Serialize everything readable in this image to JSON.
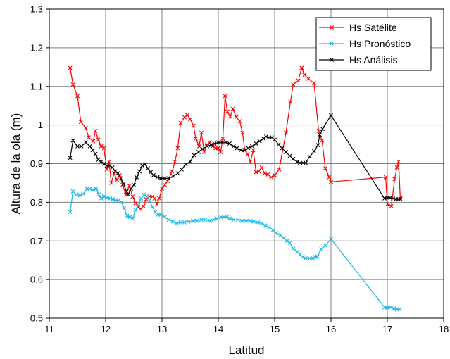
{
  "chart_data": {
    "type": "line",
    "title": "",
    "xlabel": "Latitud",
    "ylabel": "Altura de la ola (m)",
    "xlim": [
      11,
      18
    ],
    "ylim": [
      0.5,
      1.3
    ],
    "xticks": [
      "11",
      "12",
      "13",
      "14",
      "15",
      "16",
      "17",
      "18"
    ],
    "yticks": [
      "0.5",
      "0.6",
      "0.7",
      "0.8",
      "0.9",
      "1",
      "1.1",
      "1.2",
      "1.3"
    ],
    "grid": true,
    "legend_position": "top-right",
    "series": [
      {
        "name": "Hs Satélite",
        "color": "#ff0000",
        "marker": "x",
        "points": [
          [
            11.37,
            1.148
          ],
          [
            11.42,
            1.105
          ],
          [
            11.5,
            1.075
          ],
          [
            11.56,
            1.008
          ],
          [
            11.65,
            0.992
          ],
          [
            11.7,
            0.968
          ],
          [
            11.78,
            0.958
          ],
          [
            11.82,
            0.985
          ],
          [
            11.87,
            0.962
          ],
          [
            11.92,
            0.945
          ],
          [
            11.97,
            0.94
          ],
          [
            12.02,
            0.885
          ],
          [
            12.06,
            0.905
          ],
          [
            12.1,
            0.85
          ],
          [
            12.15,
            0.875
          ],
          [
            12.2,
            0.858
          ],
          [
            12.25,
            0.87
          ],
          [
            12.3,
            0.845
          ],
          [
            12.36,
            0.82
          ],
          [
            12.42,
            0.843
          ],
          [
            12.48,
            0.815
          ],
          [
            12.53,
            0.798
          ],
          [
            12.58,
            0.788
          ],
          [
            12.62,
            0.782
          ],
          [
            12.67,
            0.79
          ],
          [
            12.72,
            0.808
          ],
          [
            12.78,
            0.815
          ],
          [
            12.83,
            0.815
          ],
          [
            12.87,
            0.81
          ],
          [
            12.91,
            0.795
          ],
          [
            12.95,
            0.81
          ],
          [
            13.0,
            0.835
          ],
          [
            13.05,
            0.845
          ],
          [
            13.1,
            0.855
          ],
          [
            13.18,
            0.88
          ],
          [
            13.23,
            0.905
          ],
          [
            13.28,
            0.94
          ],
          [
            13.33,
            1.005
          ],
          [
            13.4,
            1.02
          ],
          [
            13.45,
            1.026
          ],
          [
            13.5,
            1.015
          ],
          [
            13.56,
            0.998
          ],
          [
            13.6,
            0.965
          ],
          [
            13.66,
            0.945
          ],
          [
            13.7,
            0.98
          ],
          [
            13.75,
            0.93
          ],
          [
            13.8,
            0.95
          ],
          [
            13.85,
            0.955
          ],
          [
            13.9,
            0.945
          ],
          [
            13.95,
            0.94
          ],
          [
            14.0,
            0.94
          ],
          [
            14.04,
            0.93
          ],
          [
            14.08,
            0.965
          ],
          [
            14.12,
            1.075
          ],
          [
            14.16,
            1.035
          ],
          [
            14.21,
            1.022
          ],
          [
            14.26,
            1.042
          ],
          [
            14.32,
            1.02
          ],
          [
            14.38,
            1.01
          ],
          [
            14.43,
            0.98
          ],
          [
            14.47,
            0.935
          ],
          [
            14.52,
            0.925
          ],
          [
            14.57,
            0.905
          ],
          [
            14.62,
            0.935
          ],
          [
            14.67,
            0.878
          ],
          [
            14.72,
            0.88
          ],
          [
            14.77,
            0.89
          ],
          [
            14.82,
            0.875
          ],
          [
            14.88,
            0.872
          ],
          [
            14.94,
            0.865
          ],
          [
            15.0,
            0.87
          ],
          [
            15.08,
            0.885
          ],
          [
            15.2,
            0.98
          ],
          [
            15.28,
            1.06
          ],
          [
            15.33,
            1.105
          ],
          [
            15.42,
            1.115
          ],
          [
            15.48,
            1.148
          ],
          [
            15.53,
            1.13
          ],
          [
            15.6,
            1.12
          ],
          [
            15.7,
            1.108
          ],
          [
            15.78,
            0.985
          ],
          [
            15.84,
            0.96
          ],
          [
            15.9,
            0.888
          ],
          [
            15.97,
            0.865
          ],
          [
            16.0,
            0.853
          ],
          [
            16.97,
            0.865
          ],
          [
            17.0,
            0.795
          ],
          [
            17.07,
            0.79
          ],
          [
            17.13,
            0.86
          ],
          [
            17.17,
            0.89
          ],
          [
            17.2,
            0.905
          ],
          [
            17.23,
            0.81
          ]
        ]
      },
      {
        "name": "Hs Pronóstico",
        "color": "#1ab7e8",
        "marker": "x",
        "points": [
          [
            11.37,
            0.775
          ],
          [
            11.42,
            0.828
          ],
          [
            11.48,
            0.82
          ],
          [
            11.55,
            0.818
          ],
          [
            11.6,
            0.822
          ],
          [
            11.67,
            0.835
          ],
          [
            11.72,
            0.835
          ],
          [
            11.78,
            0.832
          ],
          [
            11.83,
            0.835
          ],
          [
            11.88,
            0.82
          ],
          [
            11.92,
            0.81
          ],
          [
            11.97,
            0.815
          ],
          [
            12.02,
            0.812
          ],
          [
            12.08,
            0.81
          ],
          [
            12.13,
            0.808
          ],
          [
            12.18,
            0.805
          ],
          [
            12.23,
            0.805
          ],
          [
            12.28,
            0.8
          ],
          [
            12.33,
            0.785
          ],
          [
            12.38,
            0.765
          ],
          [
            12.43,
            0.762
          ],
          [
            12.48,
            0.758
          ],
          [
            12.53,
            0.78
          ],
          [
            12.58,
            0.792
          ],
          [
            12.63,
            0.81
          ],
          [
            12.68,
            0.82
          ],
          [
            12.73,
            0.815
          ],
          [
            12.78,
            0.805
          ],
          [
            12.83,
            0.788
          ],
          [
            12.88,
            0.775
          ],
          [
            12.93,
            0.768
          ],
          [
            12.98,
            0.768
          ],
          [
            13.05,
            0.762
          ],
          [
            13.12,
            0.755
          ],
          [
            13.2,
            0.75
          ],
          [
            13.26,
            0.745
          ],
          [
            13.33,
            0.748
          ],
          [
            13.4,
            0.748
          ],
          [
            13.47,
            0.75
          ],
          [
            13.55,
            0.752
          ],
          [
            13.62,
            0.752
          ],
          [
            13.7,
            0.755
          ],
          [
            13.77,
            0.755
          ],
          [
            13.85,
            0.752
          ],
          [
            13.92,
            0.755
          ],
          [
            13.98,
            0.758
          ],
          [
            14.05,
            0.762
          ],
          [
            14.1,
            0.762
          ],
          [
            14.15,
            0.762
          ],
          [
            14.2,
            0.758
          ],
          [
            14.27,
            0.755
          ],
          [
            14.35,
            0.755
          ],
          [
            14.42,
            0.752
          ],
          [
            14.5,
            0.752
          ],
          [
            14.57,
            0.752
          ],
          [
            14.63,
            0.75
          ],
          [
            14.7,
            0.748
          ],
          [
            14.77,
            0.745
          ],
          [
            14.83,
            0.74
          ],
          [
            14.9,
            0.735
          ],
          [
            14.97,
            0.728
          ],
          [
            15.03,
            0.72
          ],
          [
            15.1,
            0.715
          ],
          [
            15.16,
            0.708
          ],
          [
            15.22,
            0.7
          ],
          [
            15.27,
            0.695
          ],
          [
            15.33,
            0.68
          ],
          [
            15.4,
            0.672
          ],
          [
            15.45,
            0.665
          ],
          [
            15.5,
            0.658
          ],
          [
            15.55,
            0.655
          ],
          [
            15.62,
            0.655
          ],
          [
            15.68,
            0.655
          ],
          [
            15.72,
            0.658
          ],
          [
            15.76,
            0.66
          ],
          [
            15.82,
            0.678
          ],
          [
            15.9,
            0.688
          ],
          [
            16.0,
            0.705
          ],
          [
            16.95,
            0.528
          ],
          [
            17.0,
            0.527
          ],
          [
            17.06,
            0.528
          ],
          [
            17.12,
            0.525
          ],
          [
            17.17,
            0.523
          ],
          [
            17.22,
            0.523
          ]
        ]
      },
      {
        "name": "Hs Análisis",
        "color": "#000000",
        "marker": "x",
        "points": [
          [
            11.37,
            0.915
          ],
          [
            11.42,
            0.96
          ],
          [
            11.5,
            0.945
          ],
          [
            11.57,
            0.945
          ],
          [
            11.65,
            0.955
          ],
          [
            11.72,
            0.945
          ],
          [
            11.77,
            0.935
          ],
          [
            11.82,
            0.925
          ],
          [
            11.87,
            0.91
          ],
          [
            11.92,
            0.905
          ],
          [
            11.97,
            0.9
          ],
          [
            12.02,
            0.895
          ],
          [
            12.07,
            0.895
          ],
          [
            12.12,
            0.89
          ],
          [
            12.17,
            0.88
          ],
          [
            12.22,
            0.875
          ],
          [
            12.27,
            0.862
          ],
          [
            12.32,
            0.848
          ],
          [
            12.37,
            0.828
          ],
          [
            12.4,
            0.82
          ],
          [
            12.45,
            0.835
          ],
          [
            12.5,
            0.845
          ],
          [
            12.55,
            0.865
          ],
          [
            12.6,
            0.88
          ],
          [
            12.65,
            0.895
          ],
          [
            12.7,
            0.898
          ],
          [
            12.75,
            0.888
          ],
          [
            12.8,
            0.878
          ],
          [
            12.85,
            0.87
          ],
          [
            12.92,
            0.865
          ],
          [
            12.98,
            0.862
          ],
          [
            13.05,
            0.862
          ],
          [
            13.12,
            0.862
          ],
          [
            13.2,
            0.868
          ],
          [
            13.28,
            0.875
          ],
          [
            13.35,
            0.885
          ],
          [
            13.42,
            0.898
          ],
          [
            13.5,
            0.905
          ],
          [
            13.57,
            0.922
          ],
          [
            13.65,
            0.93
          ],
          [
            13.72,
            0.938
          ],
          [
            13.8,
            0.945
          ],
          [
            13.87,
            0.948
          ],
          [
            13.93,
            0.952
          ],
          [
            14.0,
            0.955
          ],
          [
            14.07,
            0.955
          ],
          [
            14.13,
            0.955
          ],
          [
            14.2,
            0.952
          ],
          [
            14.27,
            0.945
          ],
          [
            14.33,
            0.94
          ],
          [
            14.4,
            0.935
          ],
          [
            14.47,
            0.935
          ],
          [
            14.53,
            0.94
          ],
          [
            14.6,
            0.945
          ],
          [
            14.67,
            0.952
          ],
          [
            14.73,
            0.958
          ],
          [
            14.8,
            0.965
          ],
          [
            14.85,
            0.97
          ],
          [
            14.9,
            0.968
          ],
          [
            14.95,
            0.968
          ],
          [
            15.0,
            0.962
          ],
          [
            15.07,
            0.95
          ],
          [
            15.13,
            0.94
          ],
          [
            15.2,
            0.93
          ],
          [
            15.27,
            0.92
          ],
          [
            15.33,
            0.912
          ],
          [
            15.4,
            0.905
          ],
          [
            15.45,
            0.902
          ],
          [
            15.5,
            0.902
          ],
          [
            15.55,
            0.902
          ],
          [
            15.62,
            0.918
          ],
          [
            15.7,
            0.932
          ],
          [
            15.77,
            0.948
          ],
          [
            15.8,
            0.975
          ],
          [
            15.85,
            0.99
          ],
          [
            16.0,
            1.025
          ],
          [
            16.95,
            0.81
          ],
          [
            17.0,
            0.812
          ],
          [
            17.05,
            0.812
          ],
          [
            17.1,
            0.81
          ],
          [
            17.15,
            0.808
          ],
          [
            17.2,
            0.808
          ],
          [
            17.23,
            0.808
          ]
        ]
      }
    ]
  }
}
